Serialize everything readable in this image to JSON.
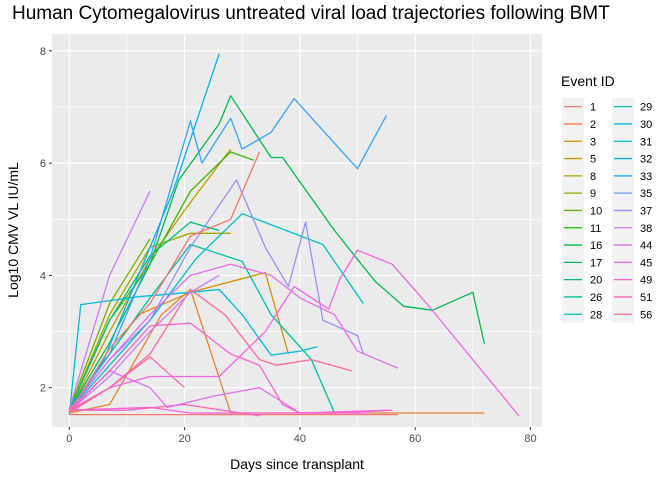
{
  "chart_data": {
    "type": "line",
    "title": "Human Cytomegalovirus untreated viral load trajectories following BMT",
    "xlabel": "Days since transplant",
    "ylabel": "Log10 CMV VL IU/mL",
    "xlim": [
      -3,
      82
    ],
    "ylim": [
      1.3,
      8.3
    ],
    "xticks": [
      0,
      20,
      40,
      60,
      80
    ],
    "yticks": [
      2,
      4,
      6,
      8
    ],
    "grid": true,
    "legend_title": "Event ID",
    "legend_position": "right",
    "series": [
      {
        "name": "1",
        "color": "#F8766D",
        "points": [
          [
            0,
            1.52
          ],
          [
            14,
            1.52
          ],
          [
            30,
            1.52
          ],
          [
            57,
            1.52
          ]
        ]
      },
      {
        "name": "2",
        "color": "#EA8331",
        "points": [
          [
            0,
            1.55
          ],
          [
            7,
            1.7
          ],
          [
            16,
            3.3
          ],
          [
            21,
            3.75
          ],
          [
            28,
            1.55
          ],
          [
            36,
            1.55
          ],
          [
            72,
            1.55
          ]
        ]
      },
      {
        "name": "3",
        "color": "#D89000",
        "points": [
          [
            0,
            1.6
          ],
          [
            7,
            2.6
          ],
          [
            12,
            3.3
          ],
          [
            21,
            3.7
          ],
          [
            34,
            4.05
          ],
          [
            38,
            2.6
          ]
        ]
      },
      {
        "name": "5",
        "color": "#C09B00",
        "points": [
          [
            0,
            1.58
          ],
          [
            7,
            3.0
          ],
          [
            14,
            4.3
          ],
          [
            21,
            5.3
          ],
          [
            28,
            6.25
          ]
        ]
      },
      {
        "name": "8",
        "color": "#A3A500",
        "points": [
          [
            0,
            1.6
          ],
          [
            7,
            3.3
          ],
          [
            14,
            4.5
          ],
          [
            21,
            4.75
          ],
          [
            28,
            4.75
          ]
        ]
      },
      {
        "name": "9",
        "color": "#7CAE00",
        "points": [
          [
            0,
            1.62
          ],
          [
            7,
            3.5
          ],
          [
            14,
            4.65
          ]
        ]
      },
      {
        "name": "10",
        "color": "#39B600",
        "points": [
          [
            0,
            1.6
          ],
          [
            7,
            3.2
          ],
          [
            14,
            4.2
          ],
          [
            21,
            5.5
          ],
          [
            28,
            6.2
          ],
          [
            32,
            6.05
          ]
        ]
      },
      {
        "name": "11",
        "color": "#00BB4E",
        "points": [
          [
            0,
            1.6
          ],
          [
            7,
            2.8
          ],
          [
            14,
            4.2
          ],
          [
            19,
            5.7
          ],
          [
            26,
            6.7
          ],
          [
            28,
            7.2
          ],
          [
            35,
            6.1
          ],
          [
            37,
            6.1
          ],
          [
            46,
            4.8
          ],
          [
            53,
            3.9
          ],
          [
            58,
            3.45
          ],
          [
            63,
            3.38
          ],
          [
            70,
            3.7
          ],
          [
            72,
            2.78
          ]
        ]
      },
      {
        "name": "16",
        "color": "#00BF7D",
        "points": [
          [
            0,
            1.6
          ],
          [
            7,
            3.2
          ],
          [
            14,
            4.35
          ],
          [
            21,
            4.95
          ],
          [
            26,
            4.8
          ]
        ]
      },
      {
        "name": "17",
        "color": "#00C1A3",
        "points": [
          [
            0,
            1.6
          ],
          [
            7,
            2.6
          ],
          [
            14,
            3.6
          ],
          [
            21,
            4.55
          ],
          [
            30,
            4.25
          ],
          [
            35,
            3.3
          ],
          [
            42,
            2.5
          ],
          [
            46,
            1.55
          ]
        ]
      },
      {
        "name": "20",
        "color": "#00BFC4",
        "points": [
          [
            0,
            1.6
          ],
          [
            7,
            2.4
          ],
          [
            14,
            3.2
          ],
          [
            22,
            4.3
          ],
          [
            30,
            5.1
          ],
          [
            44,
            4.55
          ],
          [
            51,
            3.5
          ]
        ]
      },
      {
        "name": "26",
        "color": "#00BAE0",
        "points": [
          [
            0,
            1.52
          ],
          [
            2,
            3.48
          ],
          [
            12,
            3.62
          ],
          [
            21,
            3.7
          ],
          [
            26,
            3.75
          ],
          [
            30,
            3.3
          ],
          [
            35,
            2.58
          ],
          [
            40,
            2.65
          ],
          [
            43,
            2.73
          ]
        ]
      },
      {
        "name": "28",
        "color": "#00B0F6",
        "points": [
          [
            0,
            1.6
          ],
          [
            6,
            2.5
          ],
          [
            12,
            4.0
          ],
          [
            18,
            5.5
          ],
          [
            26,
            7.95
          ]
        ]
      },
      {
        "name": "29",
        "color": "#35A2FF",
        "points": [
          [
            0,
            1.6
          ],
          [
            7,
            2.6
          ],
          [
            14,
            4.3
          ],
          [
            21,
            6.75
          ],
          [
            23,
            6.0
          ],
          [
            28,
            6.8
          ],
          [
            30,
            6.25
          ],
          [
            35,
            6.55
          ],
          [
            39,
            7.15
          ],
          [
            50,
            5.9
          ],
          [
            55,
            6.85
          ]
        ]
      },
      {
        "name": "30",
        "color": "#9590FF",
        "points": [
          [
            0,
            1.6
          ],
          [
            7,
            2.5
          ],
          [
            14,
            3.2
          ],
          [
            21,
            4.5
          ],
          [
            29,
            5.7
          ],
          [
            34,
            4.5
          ],
          [
            38,
            3.8
          ],
          [
            41,
            4.95
          ],
          [
            44,
            3.2
          ],
          [
            50,
            2.93
          ],
          [
            51,
            2.6
          ]
        ]
      },
      {
        "name": "31",
        "color": "#C77CFF",
        "points": [
          [
            0,
            1.62
          ],
          [
            7,
            4.0
          ],
          [
            14,
            5.5
          ]
        ]
      },
      {
        "name": "32",
        "color": "#E76BF3",
        "points": [
          [
            0,
            1.6
          ],
          [
            7,
            2.5
          ],
          [
            14,
            3.3
          ],
          [
            21,
            4.0
          ],
          [
            28,
            4.2
          ],
          [
            35,
            4.0
          ],
          [
            40,
            3.6
          ],
          [
            46,
            3.3
          ],
          [
            50,
            2.65
          ],
          [
            57,
            2.35
          ]
        ]
      },
      {
        "name": "33",
        "color": "#FA62DB",
        "points": [
          [
            0,
            1.6
          ],
          [
            14,
            1.65
          ],
          [
            21,
            1.55
          ],
          [
            40,
            1.55
          ],
          [
            55,
            1.6
          ]
        ]
      },
      {
        "name": "35",
        "color": "#FF62BC",
        "points": [
          [
            0,
            1.6
          ],
          [
            10,
            1.6
          ],
          [
            20,
            1.7
          ],
          [
            33,
            1.5
          ]
        ]
      },
      {
        "name": "37",
        "color": "#FF6C91",
        "points": [
          [
            0,
            1.55
          ],
          [
            7,
            2.0
          ],
          [
            14,
            2.6
          ],
          [
            21,
            3.75
          ],
          [
            27,
            3.3
          ],
          [
            33,
            2.5
          ],
          [
            36,
            2.4
          ],
          [
            42,
            2.5
          ],
          [
            49,
            2.3
          ]
        ]
      }
    ],
    "legend": [
      {
        "label": "1",
        "color": "#F8766D"
      },
      {
        "label": "2",
        "color": "#EE7F4B"
      },
      {
        "label": "3",
        "color": "#DB8E00"
      },
      {
        "label": "5",
        "color": "#C49A00"
      },
      {
        "label": "8",
        "color": "#A9A400"
      },
      {
        "label": "9",
        "color": "#8BAB00"
      },
      {
        "label": "10",
        "color": "#64B200"
      },
      {
        "label": "11",
        "color": "#1FB700"
      },
      {
        "label": "16",
        "color": "#00BA38"
      },
      {
        "label": "17",
        "color": "#00BC5F"
      },
      {
        "label": "20",
        "color": "#00BE7F"
      },
      {
        "label": "26",
        "color": "#00C09C"
      },
      {
        "label": "28",
        "color": "#00C0B7"
      },
      {
        "label": "29",
        "color": "#00BFC4"
      },
      {
        "label": "30",
        "color": "#00BCD8"
      },
      {
        "label": "31",
        "color": "#00B8E7"
      },
      {
        "label": "32",
        "color": "#00B2F4"
      },
      {
        "label": "33",
        "color": "#00A9FF"
      },
      {
        "label": "35",
        "color": "#619CFF"
      },
      {
        "label": "37",
        "color": "#A58AFF"
      },
      {
        "label": "38",
        "color": "#C77CFF"
      },
      {
        "label": "44",
        "color": "#E36EF6"
      },
      {
        "label": "45",
        "color": "#F564E3"
      },
      {
        "label": "49",
        "color": "#FF61C9"
      },
      {
        "label": "51",
        "color": "#FF64B0"
      },
      {
        "label": "56",
        "color": "#FF6C91"
      }
    ],
    "extra_series": [
      {
        "name": "38",
        "color": "#C77CFF",
        "points": [
          [
            0,
            1.58
          ],
          [
            7,
            2.2
          ],
          [
            14,
            3.0
          ],
          [
            21,
            3.7
          ],
          [
            26,
            4.0
          ]
        ]
      },
      {
        "name": "44",
        "color": "#E36EF6",
        "points": [
          [
            0,
            1.6
          ],
          [
            7,
            2.3
          ],
          [
            14,
            2.0
          ],
          [
            17,
            1.65
          ],
          [
            25,
            1.85
          ],
          [
            33,
            2.0
          ],
          [
            40,
            1.55
          ],
          [
            52,
            1.55
          ]
        ]
      },
      {
        "name": "45",
        "color": "#F564E3",
        "points": [
          [
            0,
            1.6
          ],
          [
            7,
            2.0
          ],
          [
            14,
            2.2
          ],
          [
            26,
            2.2
          ],
          [
            34,
            3.0
          ],
          [
            39,
            3.8
          ],
          [
            45,
            3.4
          ],
          [
            47,
            3.95
          ],
          [
            50,
            4.45
          ],
          [
            56,
            4.2
          ],
          [
            62,
            3.5
          ],
          [
            78,
            1.5
          ]
        ]
      },
      {
        "name": "49",
        "color": "#FF61C9",
        "points": [
          [
            0,
            1.58
          ],
          [
            7,
            2.3
          ],
          [
            14,
            3.1
          ],
          [
            21,
            3.15
          ],
          [
            28,
            2.6
          ],
          [
            33,
            2.4
          ],
          [
            37,
            1.7
          ],
          [
            40,
            1.55
          ],
          [
            46,
            1.55
          ],
          [
            56,
            1.6
          ]
        ]
      },
      {
        "name": "51",
        "color": "#FF64B0",
        "points": [
          [
            0,
            1.58
          ],
          [
            7,
            2.0
          ],
          [
            14,
            2.55
          ],
          [
            20,
            2.0
          ]
        ]
      },
      {
        "name": "56",
        "color": "#F8766D",
        "points": [
          [
            0,
            1.55
          ],
          [
            7,
            2.7
          ],
          [
            14,
            3.5
          ],
          [
            21,
            4.7
          ],
          [
            28,
            5.0
          ],
          [
            33,
            6.2
          ]
        ]
      }
    ]
  }
}
